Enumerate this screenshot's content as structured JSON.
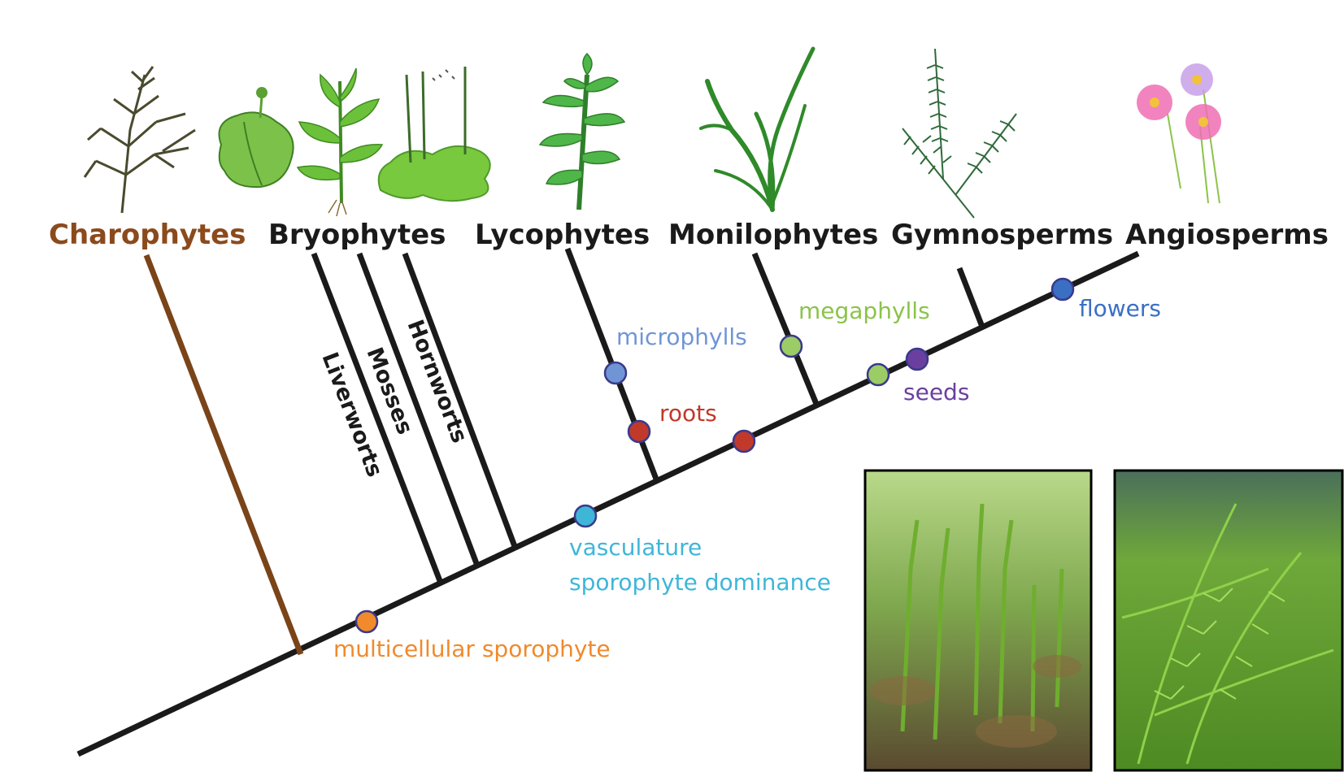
{
  "groups": {
    "charophytes": "Charophytes",
    "bryophytes": "Bryophytes",
    "lycophytes": "Lycophytes",
    "monilophytes": "Monilophytes",
    "gymnosperms": "Gymnosperms",
    "angiosperms": "Angiosperms"
  },
  "bryophyte_lineages": {
    "liverworts": "Liverworts",
    "mosses": "Mosses",
    "hornworts": "Hornworts"
  },
  "traits": {
    "multicellular_sporophyte": "multicellular sporophyte",
    "vasculature": "vasculature",
    "sporophyte_dominance": "sporophyte dominance",
    "microphylls": "microphylls",
    "roots": "roots",
    "megaphylls": "megaphylls",
    "seeds": "seeds",
    "flowers": "flowers"
  },
  "colors": {
    "charophytes": "#8b4a1c",
    "branch": "#1a1a1a",
    "charophyte_branch": "#7a4419",
    "multicellular_sporophyte": "#f08a2c",
    "vasculature": "#3fb6d8",
    "microphylls": "#6f95d6",
    "roots": "#c0392b",
    "megaphylls": "#9ccc65",
    "seeds": "#6b3fa0",
    "flowers": "#3a6fc4"
  }
}
